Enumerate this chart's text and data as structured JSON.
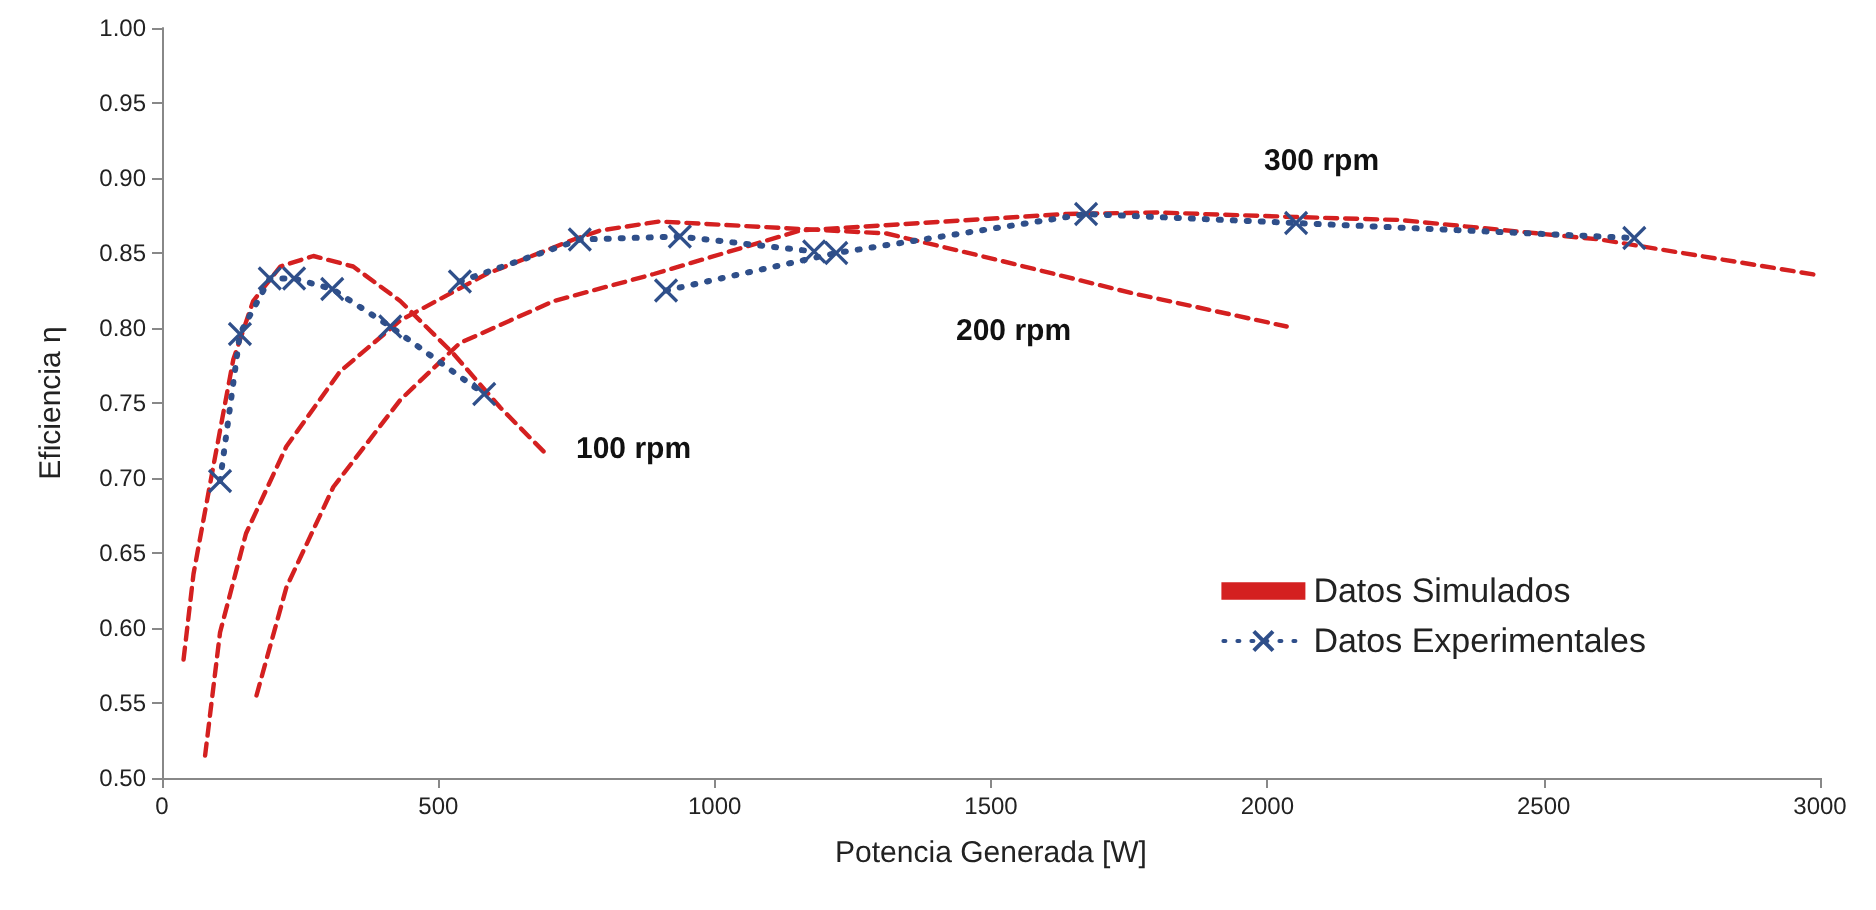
{
  "chart_data": {
    "type": "line",
    "xlabel": "Potencia Generada [W]",
    "ylabel": "Eficiencia η",
    "xlim": [
      0,
      3000
    ],
    "xticks": [
      0,
      500,
      1000,
      1500,
      2000,
      2500,
      3000
    ],
    "ylim": [
      0.5,
      1.0
    ],
    "yticks": [
      {
        "value": 0.5,
        "label": "0.50"
      },
      {
        "value": 0.55,
        "label": "0.55"
      },
      {
        "value": 0.6,
        "label": "0.60"
      },
      {
        "value": 0.65,
        "label": "0.65"
      },
      {
        "value": 0.7,
        "label": "0.70"
      },
      {
        "value": 0.75,
        "label": "0.75"
      },
      {
        "value": 0.8,
        "label": "0.80"
      },
      {
        "value": 0.85,
        "label": "0.85"
      },
      {
        "value": 0.9,
        "label": "0.90"
      },
      {
        "value": 0.95,
        "label": "0.95"
      },
      {
        "value": 1.0,
        "label": "1.00"
      }
    ],
    "grid": false,
    "legend": "bottom right",
    "annotations": [
      "100 rpm",
      "200 rpm",
      "300 rpm"
    ],
    "series": [
      {
        "name": "Datos Simulados",
        "color": "#d42020",
        "line_style": "dashed",
        "marker": "none",
        "x": [
          39,
          57,
          93,
          129,
          165,
          214,
          274,
          346,
          431,
          527,
          612,
          695
        ],
        "values": [
          0.579,
          0.636,
          0.708,
          0.779,
          0.818,
          0.841,
          0.848,
          0.841,
          0.818,
          0.783,
          0.747,
          0.716
        ]
      },
      {
        "color": "#d42020",
        "line_style": "dashed",
        "marker": "none",
        "x": [
          78,
          105,
          152,
          225,
          322,
          431,
          587,
          745,
          793,
          900,
          1311,
          1516,
          1758,
          2035
        ],
        "values": [
          0.515,
          0.597,
          0.663,
          0.721,
          0.771,
          0.805,
          0.836,
          0.859,
          0.865,
          0.871,
          0.863,
          0.845,
          0.823,
          0.801
        ]
      },
      {
        "color": "#d42020",
        "line_style": "dashed",
        "marker": "none",
        "x": [
          171,
          225,
          310,
          431,
          539,
          709,
          890,
          1155,
          1636,
          1800,
          2050,
          2240,
          2602,
          3000
        ],
        "values": [
          0.555,
          0.627,
          0.694,
          0.752,
          0.79,
          0.818,
          0.836,
          0.865,
          0.876,
          0.877,
          0.874,
          0.872,
          0.859,
          0.835
        ]
      },
      {
        "name": "Datos Experimentales",
        "color": "#2f4f8a",
        "line_style": "dotted",
        "marker": "cross",
        "x": [
          105,
          141,
          195,
          239,
          308,
          413,
          583
        ],
        "values": [
          0.698,
          0.796,
          0.833,
          0.833,
          0.826,
          0.801,
          0.756
        ]
      },
      {
        "color": "#2f4f8a",
        "line_style": "dotted",
        "marker": "cross",
        "x": [
          539,
          756,
          937,
          1180
        ],
        "values": [
          0.831,
          0.859,
          0.861,
          0.851
        ]
      },
      {
        "color": "#2f4f8a",
        "line_style": "dotted",
        "marker": "cross",
        "x": [
          912,
          1220,
          1672,
          2052,
          2664
        ],
        "values": [
          0.825,
          0.85,
          0.876,
          0.87,
          0.86
        ]
      }
    ]
  }
}
